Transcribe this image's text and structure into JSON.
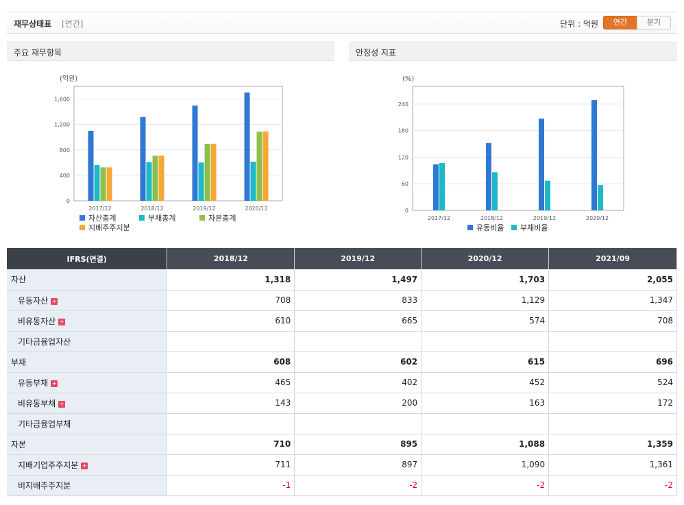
{
  "header": {
    "title": "재무상태표",
    "period_tag": "[연간]",
    "unit_label": "단위 : 억원",
    "toggle_annual": "연간",
    "toggle_quarter": "분기"
  },
  "panels": {
    "left_title": "주요 재무항목",
    "right_title": "안정성 지표"
  },
  "chart_data": [
    {
      "type": "bar",
      "title": "주요 재무항목",
      "ylabel": "(억원)",
      "categories": [
        "2017/12",
        "2018/12",
        "2019/12",
        "2020/12"
      ],
      "ylim": [
        0,
        1800
      ],
      "yticks": [
        0,
        400,
        800,
        1200,
        1600
      ],
      "ytick_labels": [
        "0",
        "400",
        "800",
        "1,200",
        "1,600"
      ],
      "series": [
        {
          "name": "자산총계",
          "color": "#2f78d3",
          "values": [
            1100,
            1318,
            1497,
            1703
          ]
        },
        {
          "name": "부채총계",
          "color": "#1fb8c8",
          "values": [
            560,
            608,
            602,
            615
          ]
        },
        {
          "name": "자본총계",
          "color": "#8cc04b",
          "values": [
            525,
            710,
            895,
            1088
          ]
        },
        {
          "name": "지배주주지분",
          "color": "#f7a733",
          "values": [
            525,
            711,
            897,
            1090
          ]
        }
      ],
      "legend": "bottom"
    },
    {
      "type": "bar",
      "title": "안정성 지표",
      "ylabel": "(%)",
      "categories": [
        "2017/12",
        "2018/12",
        "2019/12",
        "2020/12"
      ],
      "ylim": [
        0,
        280
      ],
      "yticks": [
        0,
        60,
        120,
        180,
        240
      ],
      "ytick_labels": [
        "0",
        "60",
        "120",
        "180",
        "240"
      ],
      "series": [
        {
          "name": "유동비율",
          "color": "#2f78d3",
          "values": [
            104,
            152,
            207,
            249
          ]
        },
        {
          "name": "부채비율",
          "color": "#1fb8c8",
          "values": [
            107,
            86,
            67,
            57
          ]
        }
      ],
      "legend": "bottom"
    }
  ],
  "table": {
    "corner": "IFRS(연결)",
    "columns": [
      "2018/12",
      "2019/12",
      "2020/12",
      "2021/09"
    ],
    "rows": [
      {
        "label": "자산",
        "values": [
          "1,318",
          "1,497",
          "1,703",
          "2,055"
        ]
      },
      {
        "label": "유동자산",
        "values": [
          "708",
          "833",
          "1,129",
          "1,347"
        ]
      },
      {
        "label": "비유동자산",
        "values": [
          "610",
          "665",
          "574",
          "708"
        ]
      },
      {
        "label": "기타금융업자산",
        "values": [
          "",
          "",
          "",
          ""
        ]
      },
      {
        "label": "부채",
        "values": [
          "608",
          "602",
          "615",
          "696"
        ]
      },
      {
        "label": "유동부채",
        "values": [
          "465",
          "402",
          "452",
          "524"
        ]
      },
      {
        "label": "비유동부채",
        "values": [
          "143",
          "200",
          "163",
          "172"
        ]
      },
      {
        "label": "기타금융업부채",
        "values": [
          "",
          "",
          "",
          ""
        ]
      },
      {
        "label": "자본",
        "values": [
          "710",
          "895",
          "1,088",
          "1,359"
        ]
      },
      {
        "label": "지배기업주주지분",
        "values": [
          "711",
          "897",
          "1,090",
          "1,361"
        ]
      },
      {
        "label": "비지배주주지분",
        "values": [
          "-1",
          "-2",
          "-2",
          "-2"
        ]
      }
    ]
  },
  "colors": {
    "accent": "#e3752a",
    "header_row": "#474c56",
    "negative": "#e0001e",
    "row_label_bg": "#e9eef5"
  }
}
